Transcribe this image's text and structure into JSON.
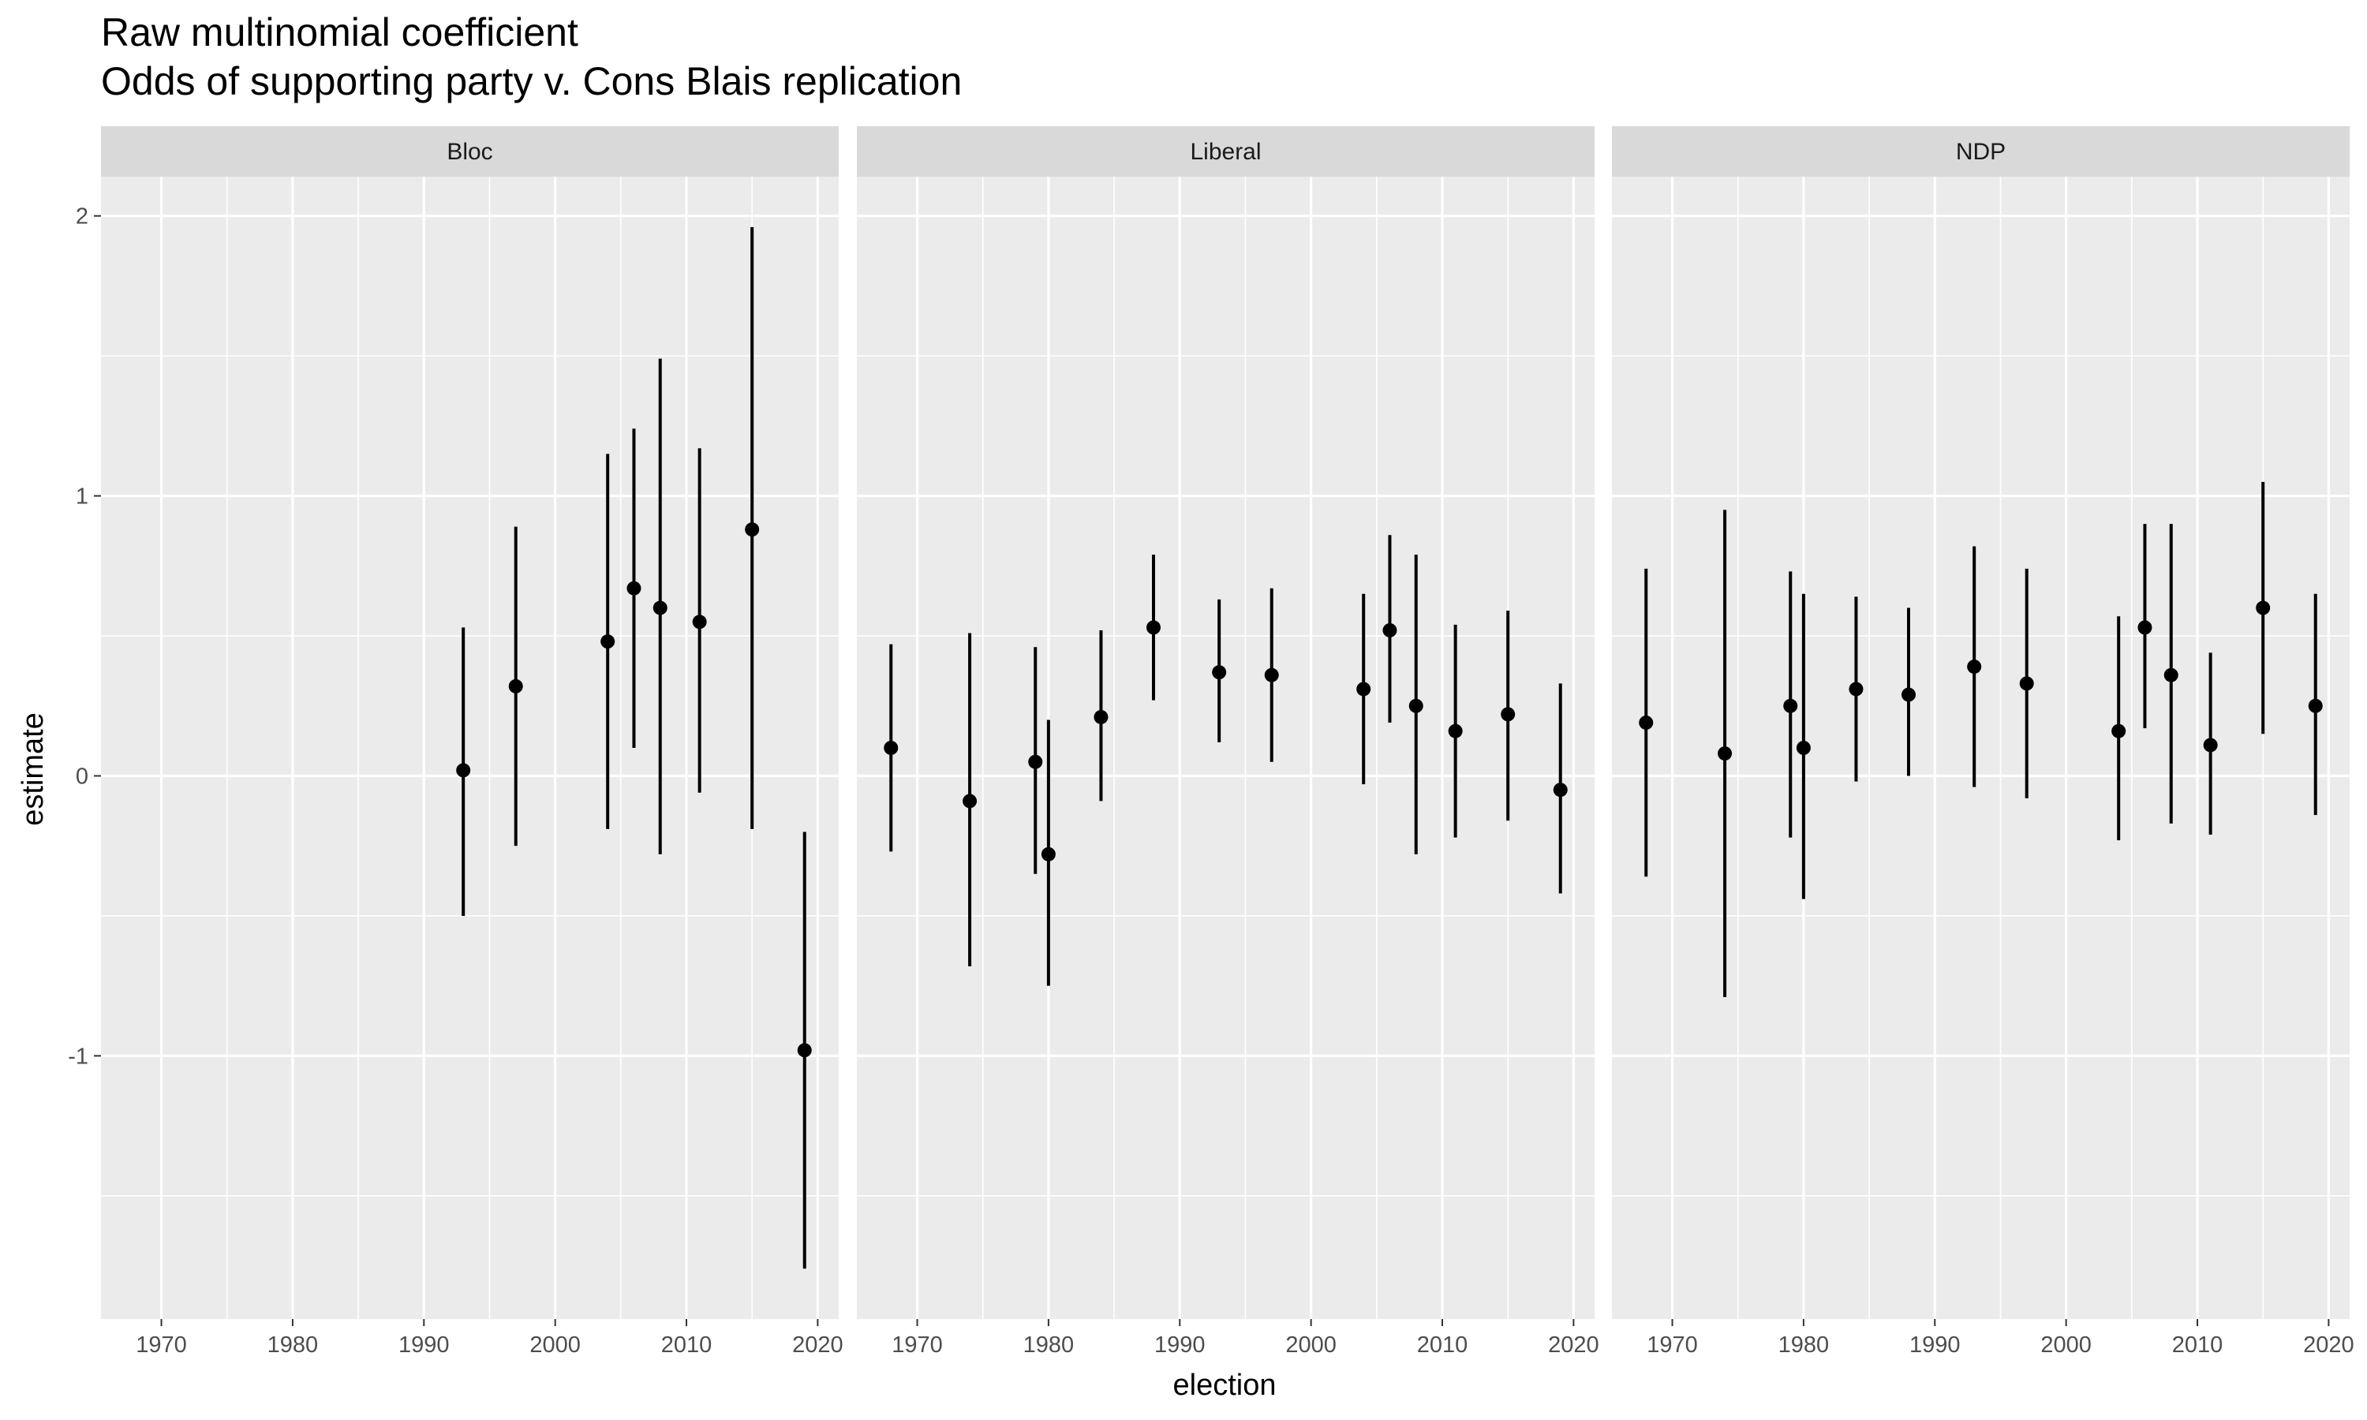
{
  "chart_data": {
    "type": "pointrange",
    "title": "Raw multinomial coefficient",
    "subtitle": "Odds of supporting party v. Cons Blais replication",
    "xlabel": "election",
    "ylabel": "estimate",
    "xlim": [
      1965.4,
      2021.6
    ],
    "ylim": [
      -1.94,
      2.14
    ],
    "x_ticks": [
      1970,
      1980,
      1990,
      2000,
      2010,
      2020
    ],
    "y_ticks": [
      -1,
      0,
      1,
      2
    ],
    "grid": true,
    "colors": {
      "panel": "#ebebeb",
      "strip": "#d9d9d9",
      "grid": "#ffffff",
      "point": "#000000"
    },
    "facets": [
      {
        "label": "Bloc",
        "points": [
          {
            "x": 1993,
            "y": 0.02,
            "lo": -0.5,
            "hi": 0.53
          },
          {
            "x": 1997,
            "y": 0.32,
            "lo": -0.25,
            "hi": 0.89
          },
          {
            "x": 2004,
            "y": 0.48,
            "lo": -0.19,
            "hi": 1.15
          },
          {
            "x": 2006,
            "y": 0.67,
            "lo": 0.1,
            "hi": 1.24
          },
          {
            "x": 2008,
            "y": 0.6,
            "lo": -0.28,
            "hi": 1.49
          },
          {
            "x": 2011,
            "y": 0.55,
            "lo": -0.06,
            "hi": 1.17
          },
          {
            "x": 2015,
            "y": 0.88,
            "lo": -0.19,
            "hi": 1.96
          },
          {
            "x": 2019,
            "y": -0.98,
            "lo": -1.76,
            "hi": -0.2
          }
        ]
      },
      {
        "label": "Liberal",
        "points": [
          {
            "x": 1968,
            "y": 0.1,
            "lo": -0.27,
            "hi": 0.47
          },
          {
            "x": 1974,
            "y": -0.09,
            "lo": -0.68,
            "hi": 0.51
          },
          {
            "x": 1979,
            "y": 0.05,
            "lo": -0.35,
            "hi": 0.46
          },
          {
            "x": 1980,
            "y": -0.28,
            "lo": -0.75,
            "hi": 0.2
          },
          {
            "x": 1984,
            "y": 0.21,
            "lo": -0.09,
            "hi": 0.52
          },
          {
            "x": 1988,
            "y": 0.53,
            "lo": 0.27,
            "hi": 0.79
          },
          {
            "x": 1993,
            "y": 0.37,
            "lo": 0.12,
            "hi": 0.63
          },
          {
            "x": 1997,
            "y": 0.36,
            "lo": 0.05,
            "hi": 0.67
          },
          {
            "x": 2004,
            "y": 0.31,
            "lo": -0.03,
            "hi": 0.65
          },
          {
            "x": 2006,
            "y": 0.52,
            "lo": 0.19,
            "hi": 0.86
          },
          {
            "x": 2008,
            "y": 0.25,
            "lo": -0.28,
            "hi": 0.79
          },
          {
            "x": 2011,
            "y": 0.16,
            "lo": -0.22,
            "hi": 0.54
          },
          {
            "x": 2015,
            "y": 0.22,
            "lo": -0.16,
            "hi": 0.59
          },
          {
            "x": 2019,
            "y": -0.05,
            "lo": -0.42,
            "hi": 0.33
          }
        ]
      },
      {
        "label": "NDP",
        "points": [
          {
            "x": 1968,
            "y": 0.19,
            "lo": -0.36,
            "hi": 0.74
          },
          {
            "x": 1974,
            "y": 0.08,
            "lo": -0.79,
            "hi": 0.95
          },
          {
            "x": 1979,
            "y": 0.25,
            "lo": -0.22,
            "hi": 0.73
          },
          {
            "x": 1980,
            "y": 0.1,
            "lo": -0.44,
            "hi": 0.65
          },
          {
            "x": 1984,
            "y": 0.31,
            "lo": -0.02,
            "hi": 0.64
          },
          {
            "x": 1988,
            "y": 0.29,
            "lo": 0.0,
            "hi": 0.6
          },
          {
            "x": 1993,
            "y": 0.39,
            "lo": -0.04,
            "hi": 0.82
          },
          {
            "x": 1997,
            "y": 0.33,
            "lo": -0.08,
            "hi": 0.74
          },
          {
            "x": 2004,
            "y": 0.16,
            "lo": -0.23,
            "hi": 0.57
          },
          {
            "x": 2006,
            "y": 0.53,
            "lo": 0.17,
            "hi": 0.9
          },
          {
            "x": 2008,
            "y": 0.36,
            "lo": -0.17,
            "hi": 0.9
          },
          {
            "x": 2011,
            "y": 0.11,
            "lo": -0.21,
            "hi": 0.44
          },
          {
            "x": 2015,
            "y": 0.6,
            "lo": 0.15,
            "hi": 1.05
          },
          {
            "x": 2019,
            "y": 0.25,
            "lo": -0.14,
            "hi": 0.65
          }
        ]
      }
    ]
  }
}
